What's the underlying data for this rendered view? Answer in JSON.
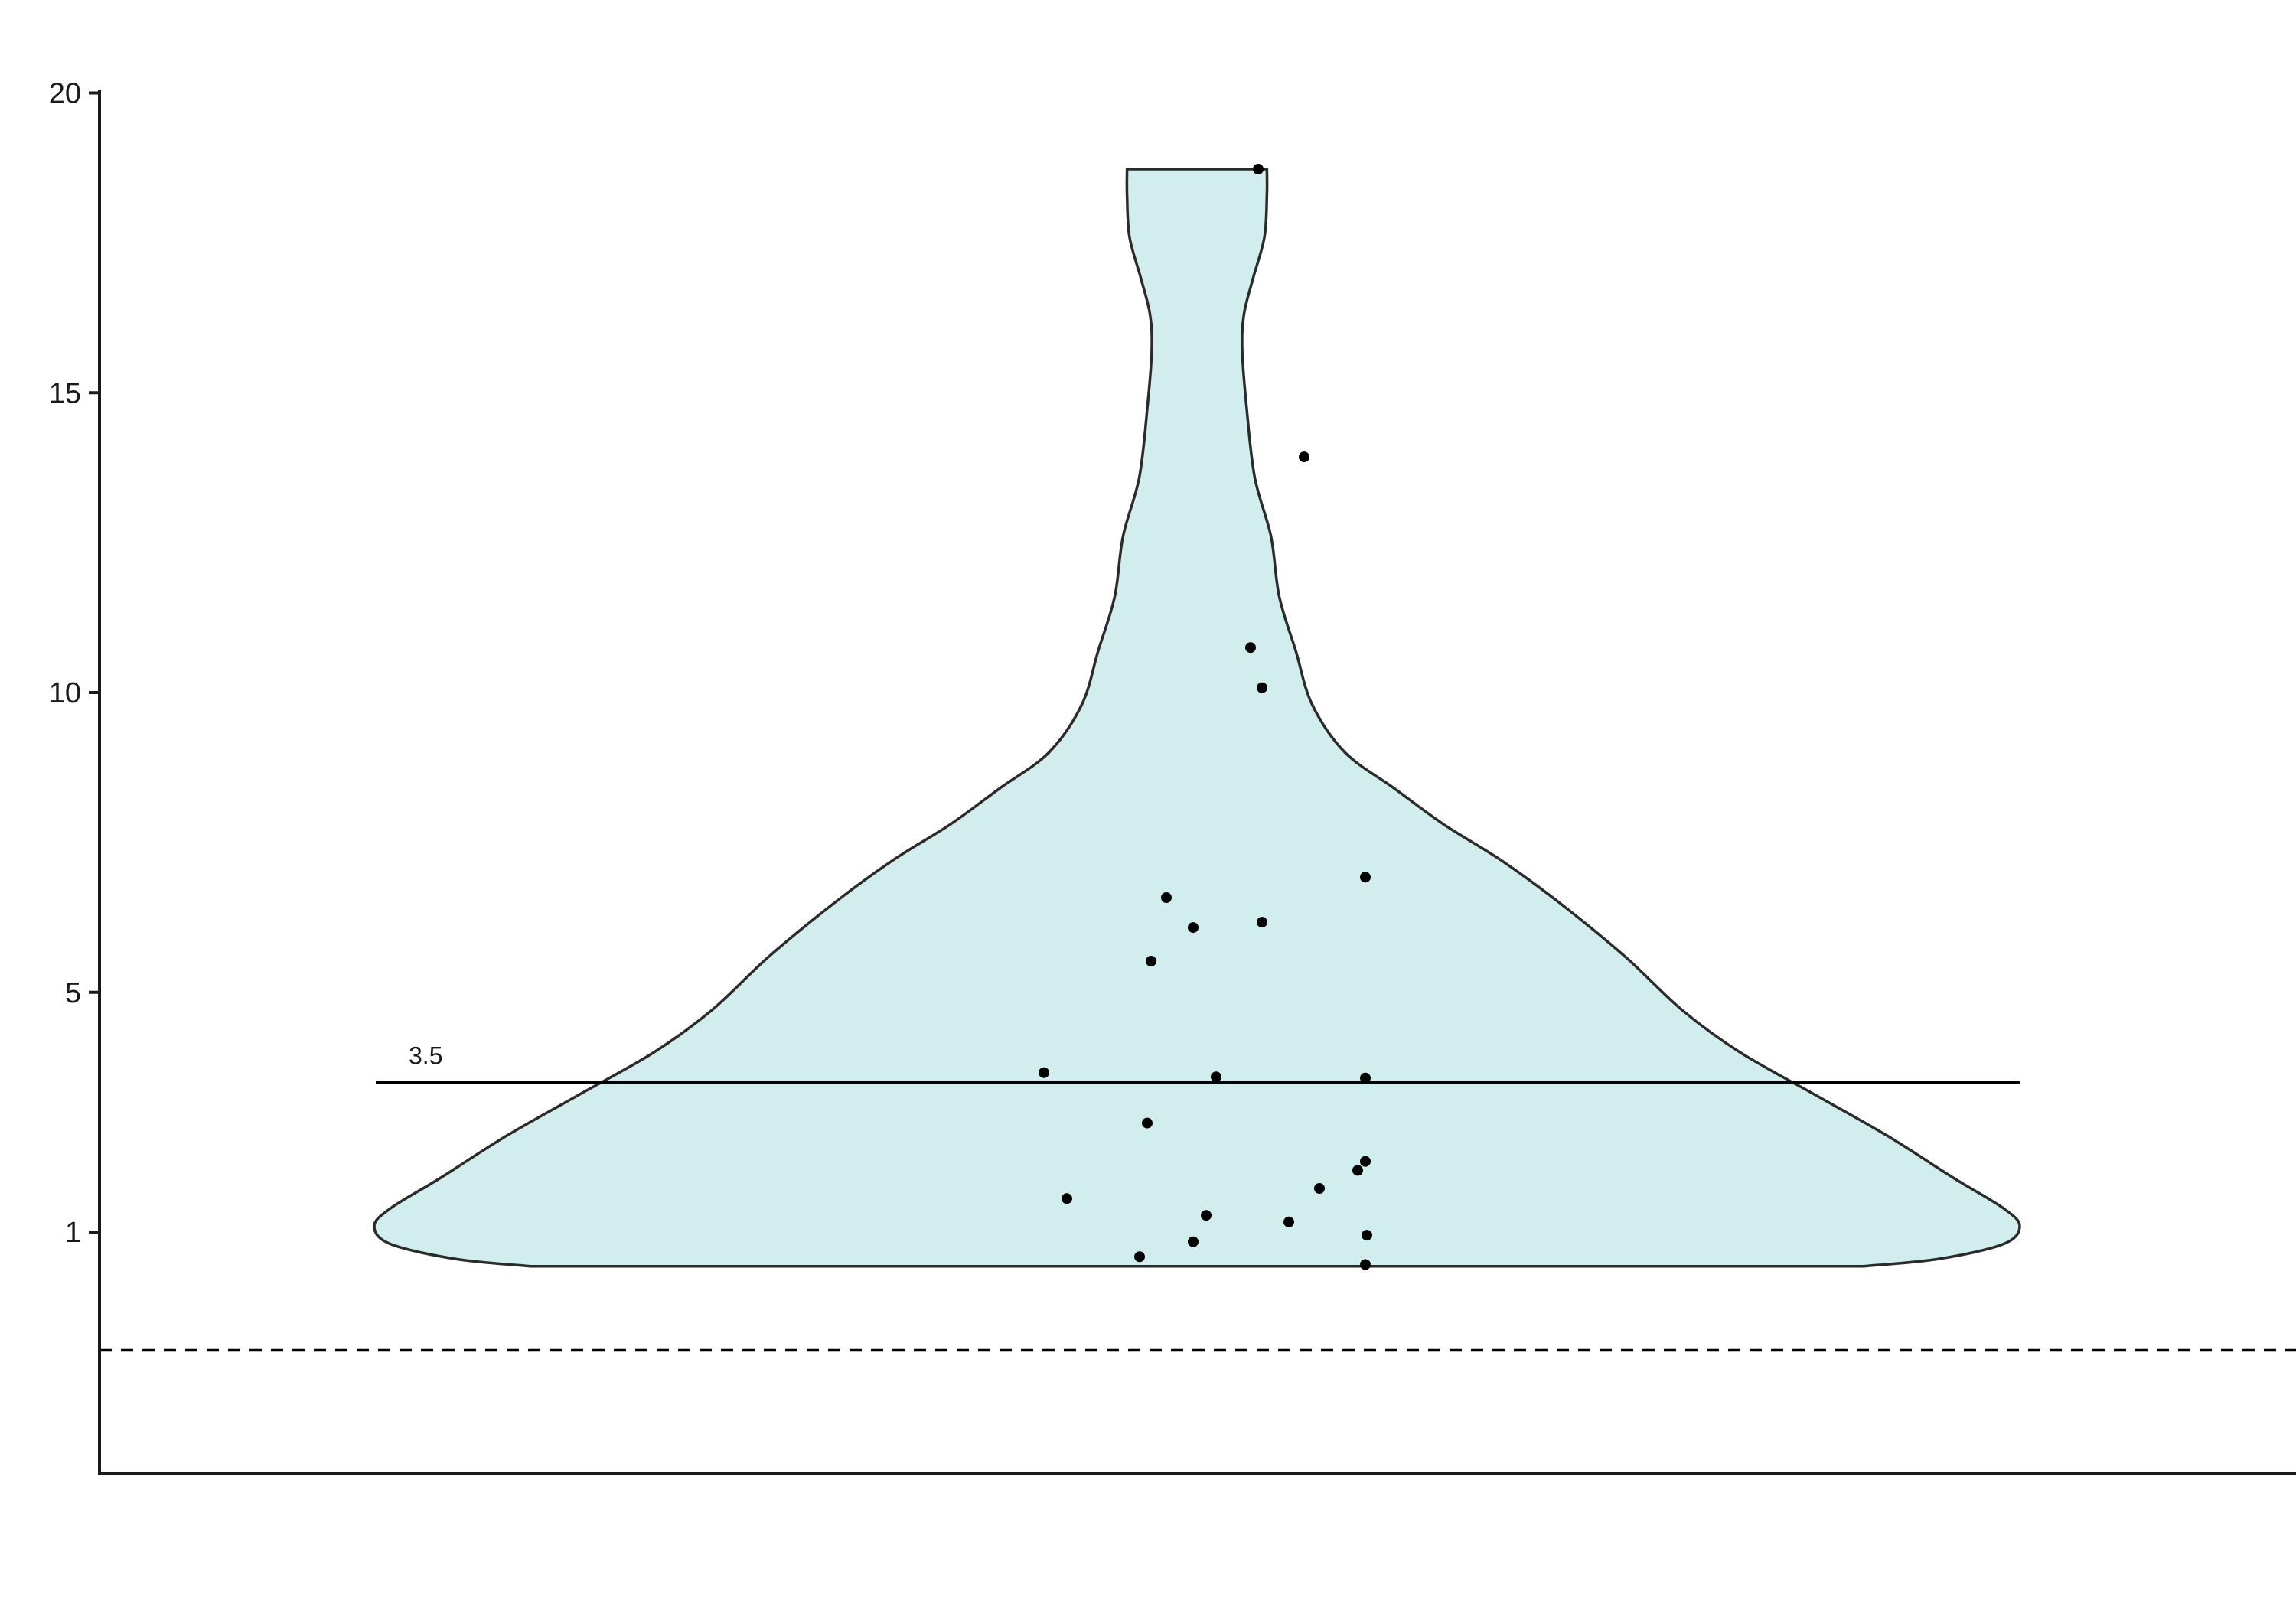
{
  "chart_data": {
    "type": "violin",
    "title": "",
    "xlabel": "",
    "ylabel": "",
    "ylim": [
      -2,
      21
    ],
    "y_ticks": [
      1,
      5,
      10,
      15,
      20
    ],
    "y_tick_labels": [
      "1",
      "5",
      "10",
      "15",
      "20"
    ],
    "grid": false,
    "legend": "none",
    "colors": {
      "violin_fill": "#d1edee",
      "violin_stroke": "#2b2b2b",
      "points": "#000000",
      "axis": "#1a1a1a",
      "reference": "#000000"
    },
    "violin_profile": [
      {
        "y": 0.43,
        "width": 0.81
      },
      {
        "y": 0.55,
        "width": 0.9
      },
      {
        "y": 0.8,
        "width": 0.98
      },
      {
        "y": 1.1,
        "width": 1.0
      },
      {
        "y": 1.4,
        "width": 0.98
      },
      {
        "y": 1.9,
        "width": 0.92
      },
      {
        "y": 2.6,
        "width": 0.84
      },
      {
        "y": 3.3,
        "width": 0.75
      },
      {
        "y": 4.0,
        "width": 0.66
      },
      {
        "y": 4.7,
        "width": 0.59
      },
      {
        "y": 5.6,
        "width": 0.52
      },
      {
        "y": 6.5,
        "width": 0.44
      },
      {
        "y": 7.2,
        "width": 0.37
      },
      {
        "y": 7.8,
        "width": 0.3
      },
      {
        "y": 8.4,
        "width": 0.24
      },
      {
        "y": 9.0,
        "width": 0.18
      },
      {
        "y": 9.8,
        "width": 0.14
      },
      {
        "y": 10.7,
        "width": 0.12
      },
      {
        "y": 11.6,
        "width": 0.1
      },
      {
        "y": 12.6,
        "width": 0.09
      },
      {
        "y": 13.6,
        "width": 0.07
      },
      {
        "y": 14.8,
        "width": 0.06
      },
      {
        "y": 15.7,
        "width": 0.055
      },
      {
        "y": 16.3,
        "width": 0.057
      },
      {
        "y": 16.9,
        "width": 0.068
      },
      {
        "y": 17.6,
        "width": 0.082
      },
      {
        "y": 18.3,
        "width": 0.085
      },
      {
        "y": 18.73,
        "width": 0.085
      }
    ],
    "points": [
      {
        "x": 0.08,
        "y": 18.73
      },
      {
        "x": 0.14,
        "y": 13.93
      },
      {
        "x": 0.07,
        "y": 10.75
      },
      {
        "x": 0.085,
        "y": 10.08
      },
      {
        "x": 0.22,
        "y": 6.92
      },
      {
        "x": -0.04,
        "y": 6.58
      },
      {
        "x": 0.085,
        "y": 6.17
      },
      {
        "x": -0.005,
        "y": 6.08
      },
      {
        "x": -0.06,
        "y": 5.52
      },
      {
        "x": -0.2,
        "y": 3.66
      },
      {
        "x": 0.025,
        "y": 3.59
      },
      {
        "x": 0.22,
        "y": 3.57
      },
      {
        "x": -0.065,
        "y": 2.82
      },
      {
        "x": 0.22,
        "y": 2.18
      },
      {
        "x": 0.21,
        "y": 2.03
      },
      {
        "x": 0.16,
        "y": 1.73
      },
      {
        "x": -0.17,
        "y": 1.56
      },
      {
        "x": 0.012,
        "y": 1.28
      },
      {
        "x": 0.12,
        "y": 1.17
      },
      {
        "x": 0.222,
        "y": 0.95
      },
      {
        "x": -0.005,
        "y": 0.84
      },
      {
        "x": -0.075,
        "y": 0.59
      },
      {
        "x": 0.22,
        "y": 0.46
      }
    ],
    "reference_line": {
      "y": 3.5,
      "label": "3.5"
    },
    "threshold_line": {
      "y": 0.0,
      "style": "dashed"
    }
  }
}
